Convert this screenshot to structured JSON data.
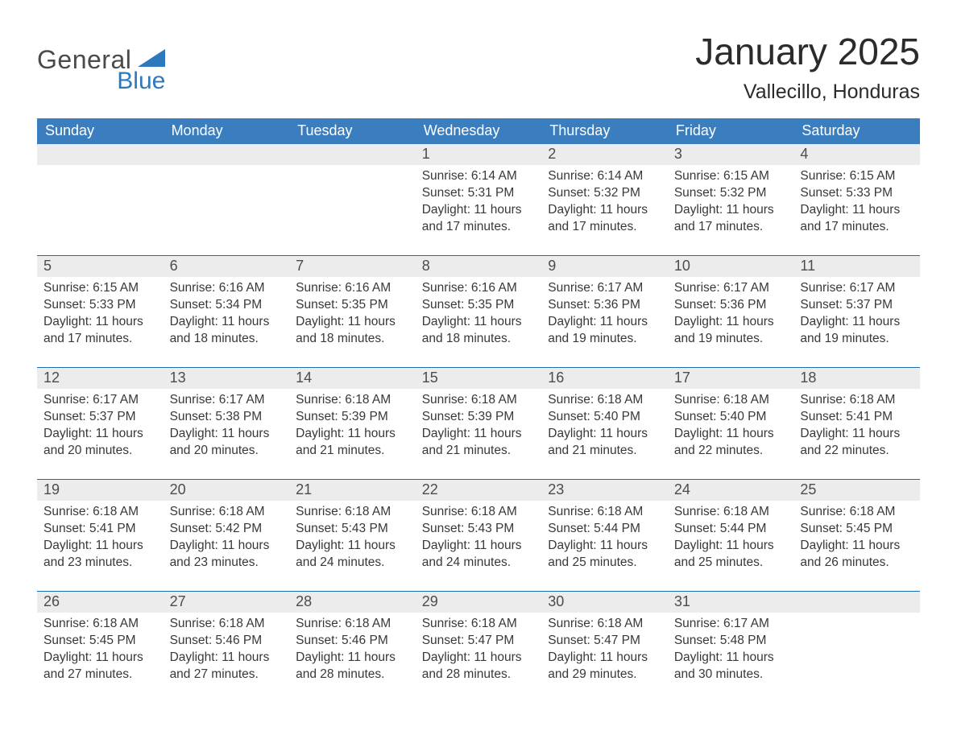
{
  "brand": {
    "line1": "General",
    "line2": "Blue"
  },
  "header": {
    "month": "January 2025",
    "location": "Vallecillo, Honduras"
  },
  "colors": {
    "header_blue": "#3b7ec0",
    "accent_blue": "#1e6db3",
    "row_gray": "#ececec",
    "brand_blue": "#2e79bd",
    "text": "#323232"
  },
  "dow": [
    "Sunday",
    "Monday",
    "Tuesday",
    "Wednesday",
    "Thursday",
    "Friday",
    "Saturday"
  ],
  "weeks": [
    [
      {
        "day": "",
        "sunrise": "",
        "sunset": "",
        "daylight": ""
      },
      {
        "day": "",
        "sunrise": "",
        "sunset": "",
        "daylight": ""
      },
      {
        "day": "",
        "sunrise": "",
        "sunset": "",
        "daylight": ""
      },
      {
        "day": "1",
        "sunrise": "Sunrise: 6:14 AM",
        "sunset": "Sunset: 5:31 PM",
        "daylight": "Daylight: 11 hours and 17 minutes."
      },
      {
        "day": "2",
        "sunrise": "Sunrise: 6:14 AM",
        "sunset": "Sunset: 5:32 PM",
        "daylight": "Daylight: 11 hours and 17 minutes."
      },
      {
        "day": "3",
        "sunrise": "Sunrise: 6:15 AM",
        "sunset": "Sunset: 5:32 PM",
        "daylight": "Daylight: 11 hours and 17 minutes."
      },
      {
        "day": "4",
        "sunrise": "Sunrise: 6:15 AM",
        "sunset": "Sunset: 5:33 PM",
        "daylight": "Daylight: 11 hours and 17 minutes."
      }
    ],
    [
      {
        "day": "5",
        "sunrise": "Sunrise: 6:15 AM",
        "sunset": "Sunset: 5:33 PM",
        "daylight": "Daylight: 11 hours and 17 minutes."
      },
      {
        "day": "6",
        "sunrise": "Sunrise: 6:16 AM",
        "sunset": "Sunset: 5:34 PM",
        "daylight": "Daylight: 11 hours and 18 minutes."
      },
      {
        "day": "7",
        "sunrise": "Sunrise: 6:16 AM",
        "sunset": "Sunset: 5:35 PM",
        "daylight": "Daylight: 11 hours and 18 minutes."
      },
      {
        "day": "8",
        "sunrise": "Sunrise: 6:16 AM",
        "sunset": "Sunset: 5:35 PM",
        "daylight": "Daylight: 11 hours and 18 minutes."
      },
      {
        "day": "9",
        "sunrise": "Sunrise: 6:17 AM",
        "sunset": "Sunset: 5:36 PM",
        "daylight": "Daylight: 11 hours and 19 minutes."
      },
      {
        "day": "10",
        "sunrise": "Sunrise: 6:17 AM",
        "sunset": "Sunset: 5:36 PM",
        "daylight": "Daylight: 11 hours and 19 minutes."
      },
      {
        "day": "11",
        "sunrise": "Sunrise: 6:17 AM",
        "sunset": "Sunset: 5:37 PM",
        "daylight": "Daylight: 11 hours and 19 minutes."
      }
    ],
    [
      {
        "day": "12",
        "sunrise": "Sunrise: 6:17 AM",
        "sunset": "Sunset: 5:37 PM",
        "daylight": "Daylight: 11 hours and 20 minutes."
      },
      {
        "day": "13",
        "sunrise": "Sunrise: 6:17 AM",
        "sunset": "Sunset: 5:38 PM",
        "daylight": "Daylight: 11 hours and 20 minutes."
      },
      {
        "day": "14",
        "sunrise": "Sunrise: 6:18 AM",
        "sunset": "Sunset: 5:39 PM",
        "daylight": "Daylight: 11 hours and 21 minutes."
      },
      {
        "day": "15",
        "sunrise": "Sunrise: 6:18 AM",
        "sunset": "Sunset: 5:39 PM",
        "daylight": "Daylight: 11 hours and 21 minutes."
      },
      {
        "day": "16",
        "sunrise": "Sunrise: 6:18 AM",
        "sunset": "Sunset: 5:40 PM",
        "daylight": "Daylight: 11 hours and 21 minutes."
      },
      {
        "day": "17",
        "sunrise": "Sunrise: 6:18 AM",
        "sunset": "Sunset: 5:40 PM",
        "daylight": "Daylight: 11 hours and 22 minutes."
      },
      {
        "day": "18",
        "sunrise": "Sunrise: 6:18 AM",
        "sunset": "Sunset: 5:41 PM",
        "daylight": "Daylight: 11 hours and 22 minutes."
      }
    ],
    [
      {
        "day": "19",
        "sunrise": "Sunrise: 6:18 AM",
        "sunset": "Sunset: 5:41 PM",
        "daylight": "Daylight: 11 hours and 23 minutes."
      },
      {
        "day": "20",
        "sunrise": "Sunrise: 6:18 AM",
        "sunset": "Sunset: 5:42 PM",
        "daylight": "Daylight: 11 hours and 23 minutes."
      },
      {
        "day": "21",
        "sunrise": "Sunrise: 6:18 AM",
        "sunset": "Sunset: 5:43 PM",
        "daylight": "Daylight: 11 hours and 24 minutes."
      },
      {
        "day": "22",
        "sunrise": "Sunrise: 6:18 AM",
        "sunset": "Sunset: 5:43 PM",
        "daylight": "Daylight: 11 hours and 24 minutes."
      },
      {
        "day": "23",
        "sunrise": "Sunrise: 6:18 AM",
        "sunset": "Sunset: 5:44 PM",
        "daylight": "Daylight: 11 hours and 25 minutes."
      },
      {
        "day": "24",
        "sunrise": "Sunrise: 6:18 AM",
        "sunset": "Sunset: 5:44 PM",
        "daylight": "Daylight: 11 hours and 25 minutes."
      },
      {
        "day": "25",
        "sunrise": "Sunrise: 6:18 AM",
        "sunset": "Sunset: 5:45 PM",
        "daylight": "Daylight: 11 hours and 26 minutes."
      }
    ],
    [
      {
        "day": "26",
        "sunrise": "Sunrise: 6:18 AM",
        "sunset": "Sunset: 5:45 PM",
        "daylight": "Daylight: 11 hours and 27 minutes."
      },
      {
        "day": "27",
        "sunrise": "Sunrise: 6:18 AM",
        "sunset": "Sunset: 5:46 PM",
        "daylight": "Daylight: 11 hours and 27 minutes."
      },
      {
        "day": "28",
        "sunrise": "Sunrise: 6:18 AM",
        "sunset": "Sunset: 5:46 PM",
        "daylight": "Daylight: 11 hours and 28 minutes."
      },
      {
        "day": "29",
        "sunrise": "Sunrise: 6:18 AM",
        "sunset": "Sunset: 5:47 PM",
        "daylight": "Daylight: 11 hours and 28 minutes."
      },
      {
        "day": "30",
        "sunrise": "Sunrise: 6:18 AM",
        "sunset": "Sunset: 5:47 PM",
        "daylight": "Daylight: 11 hours and 29 minutes."
      },
      {
        "day": "31",
        "sunrise": "Sunrise: 6:17 AM",
        "sunset": "Sunset: 5:48 PM",
        "daylight": "Daylight: 11 hours and 30 minutes."
      },
      {
        "day": "",
        "sunrise": "",
        "sunset": "",
        "daylight": ""
      }
    ]
  ]
}
